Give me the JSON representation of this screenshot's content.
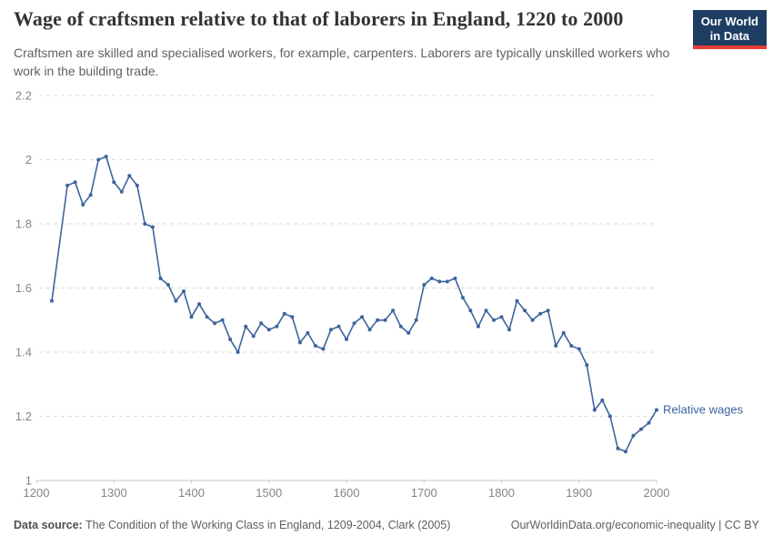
{
  "header": {
    "title": "Wage of craftsmen relative to that of laborers in England, 1220 to 2000",
    "subtitle": "Craftsmen are skilled and specialised workers, for example, carpenters. Laborers are typically unskilled workers who work in the building trade."
  },
  "logo": {
    "line1": "Our World",
    "line2": "in Data",
    "bg_color": "#1D3D63",
    "bar_color": "#E63E36"
  },
  "chart_data": {
    "type": "line",
    "title": "Wage of craftsmen relative to that of laborers in England, 1220 to 2000",
    "xlabel": "",
    "ylabel": "",
    "xlim": [
      1200,
      2000
    ],
    "ylim": [
      1,
      2.2
    ],
    "xticks": [
      1200,
      1300,
      1400,
      1500,
      1600,
      1700,
      1800,
      1900,
      2000
    ],
    "yticks": [
      1,
      1.2,
      1.4,
      1.6,
      1.8,
      2,
      2.2
    ],
    "ytick_labels": [
      "1",
      "1.2",
      "1.4",
      "1.6",
      "1.8",
      "2",
      "2.2"
    ],
    "grid": "horizontal-dashed",
    "legend_position": "end-of-line-label",
    "line_color": "#3D649C",
    "series": [
      {
        "name": "Relative wages",
        "x": [
          1220,
          1240,
          1250,
          1260,
          1270,
          1280,
          1290,
          1300,
          1310,
          1320,
          1330,
          1340,
          1350,
          1360,
          1370,
          1380,
          1390,
          1400,
          1410,
          1420,
          1430,
          1440,
          1450,
          1460,
          1470,
          1480,
          1490,
          1500,
          1510,
          1520,
          1530,
          1540,
          1550,
          1560,
          1570,
          1580,
          1590,
          1600,
          1610,
          1620,
          1630,
          1640,
          1650,
          1660,
          1670,
          1680,
          1690,
          1700,
          1710,
          1720,
          1730,
          1740,
          1750,
          1760,
          1770,
          1780,
          1790,
          1800,
          1810,
          1820,
          1830,
          1840,
          1850,
          1860,
          1870,
          1880,
          1890,
          1900,
          1910,
          1920,
          1930,
          1940,
          1950,
          1960,
          1970,
          1980,
          1990,
          2000
        ],
        "values": [
          1.56,
          1.92,
          1.93,
          1.86,
          1.89,
          2.0,
          2.01,
          1.93,
          1.9,
          1.95,
          1.92,
          1.8,
          1.79,
          1.63,
          1.61,
          1.56,
          1.59,
          1.51,
          1.55,
          1.51,
          1.49,
          1.5,
          1.44,
          1.4,
          1.48,
          1.45,
          1.49,
          1.47,
          1.48,
          1.52,
          1.51,
          1.43,
          1.46,
          1.42,
          1.41,
          1.47,
          1.48,
          1.44,
          1.49,
          1.51,
          1.47,
          1.5,
          1.5,
          1.53,
          1.48,
          1.46,
          1.5,
          1.61,
          1.63,
          1.62,
          1.62,
          1.63,
          1.57,
          1.53,
          1.48,
          1.53,
          1.5,
          1.51,
          1.47,
          1.56,
          1.53,
          1.5,
          1.52,
          1.53,
          1.42,
          1.46,
          1.42,
          1.41,
          1.36,
          1.22,
          1.25,
          1.2,
          1.1,
          1.09,
          1.14,
          1.16,
          1.18,
          1.22
        ]
      }
    ]
  },
  "footer": {
    "datasource_label": "Data source:",
    "datasource_text": " The Condition of the Working Class in England, 1209-2004, Clark (2005)",
    "link": "OurWorldinData.org/economic-inequality | CC BY"
  }
}
